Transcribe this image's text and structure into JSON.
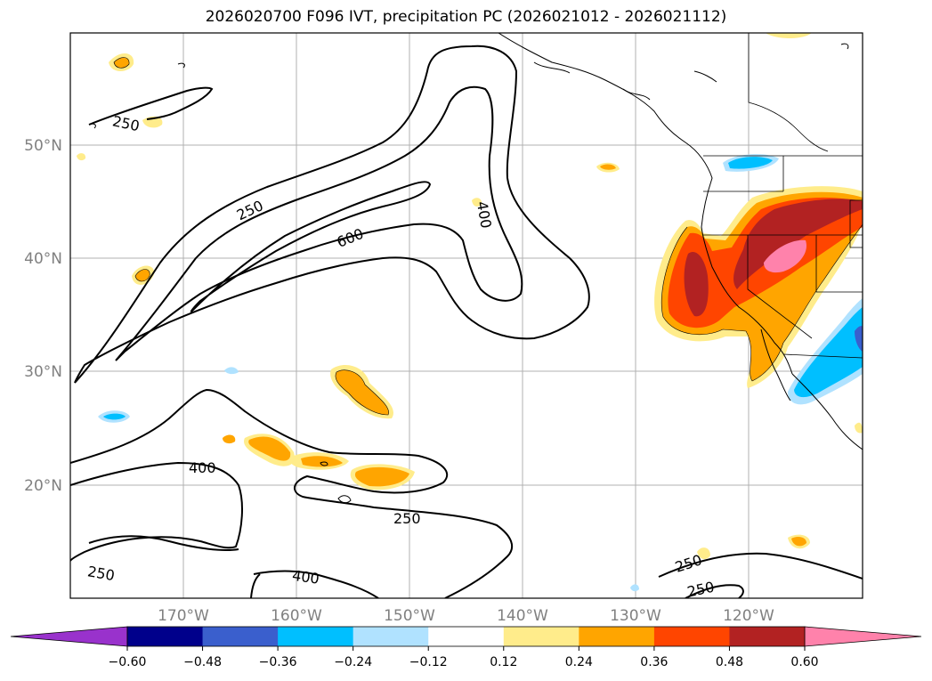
{
  "title": "2026020700 F096 IVT, precipitation PC (2026021012 - 2026021112)",
  "map": {
    "lat_labels": [
      "50°N",
      "40°N",
      "30°N",
      "20°N"
    ],
    "lon_labels": [
      "170°W",
      "160°W",
      "150°W",
      "140°W",
      "130°W",
      "120°W"
    ],
    "contour_labels": [
      "250",
      "250",
      "600",
      "400",
      "400",
      "250",
      "250",
      "400",
      "250",
      "250"
    ]
  },
  "colorbar": {
    "ticks": [
      "−0.60",
      "−0.48",
      "−0.36",
      "−0.24",
      "−0.12",
      "0.12",
      "0.24",
      "0.36",
      "0.48",
      "0.60"
    ],
    "colors": [
      "#9932cc",
      "#00008b",
      "#3a5fcd",
      "#00bfff",
      "#b0e2ff",
      "#ffffff",
      "#ffec8b",
      "#ffa500",
      "#ff4500",
      "#b22222",
      "#ff82ab"
    ]
  }
}
